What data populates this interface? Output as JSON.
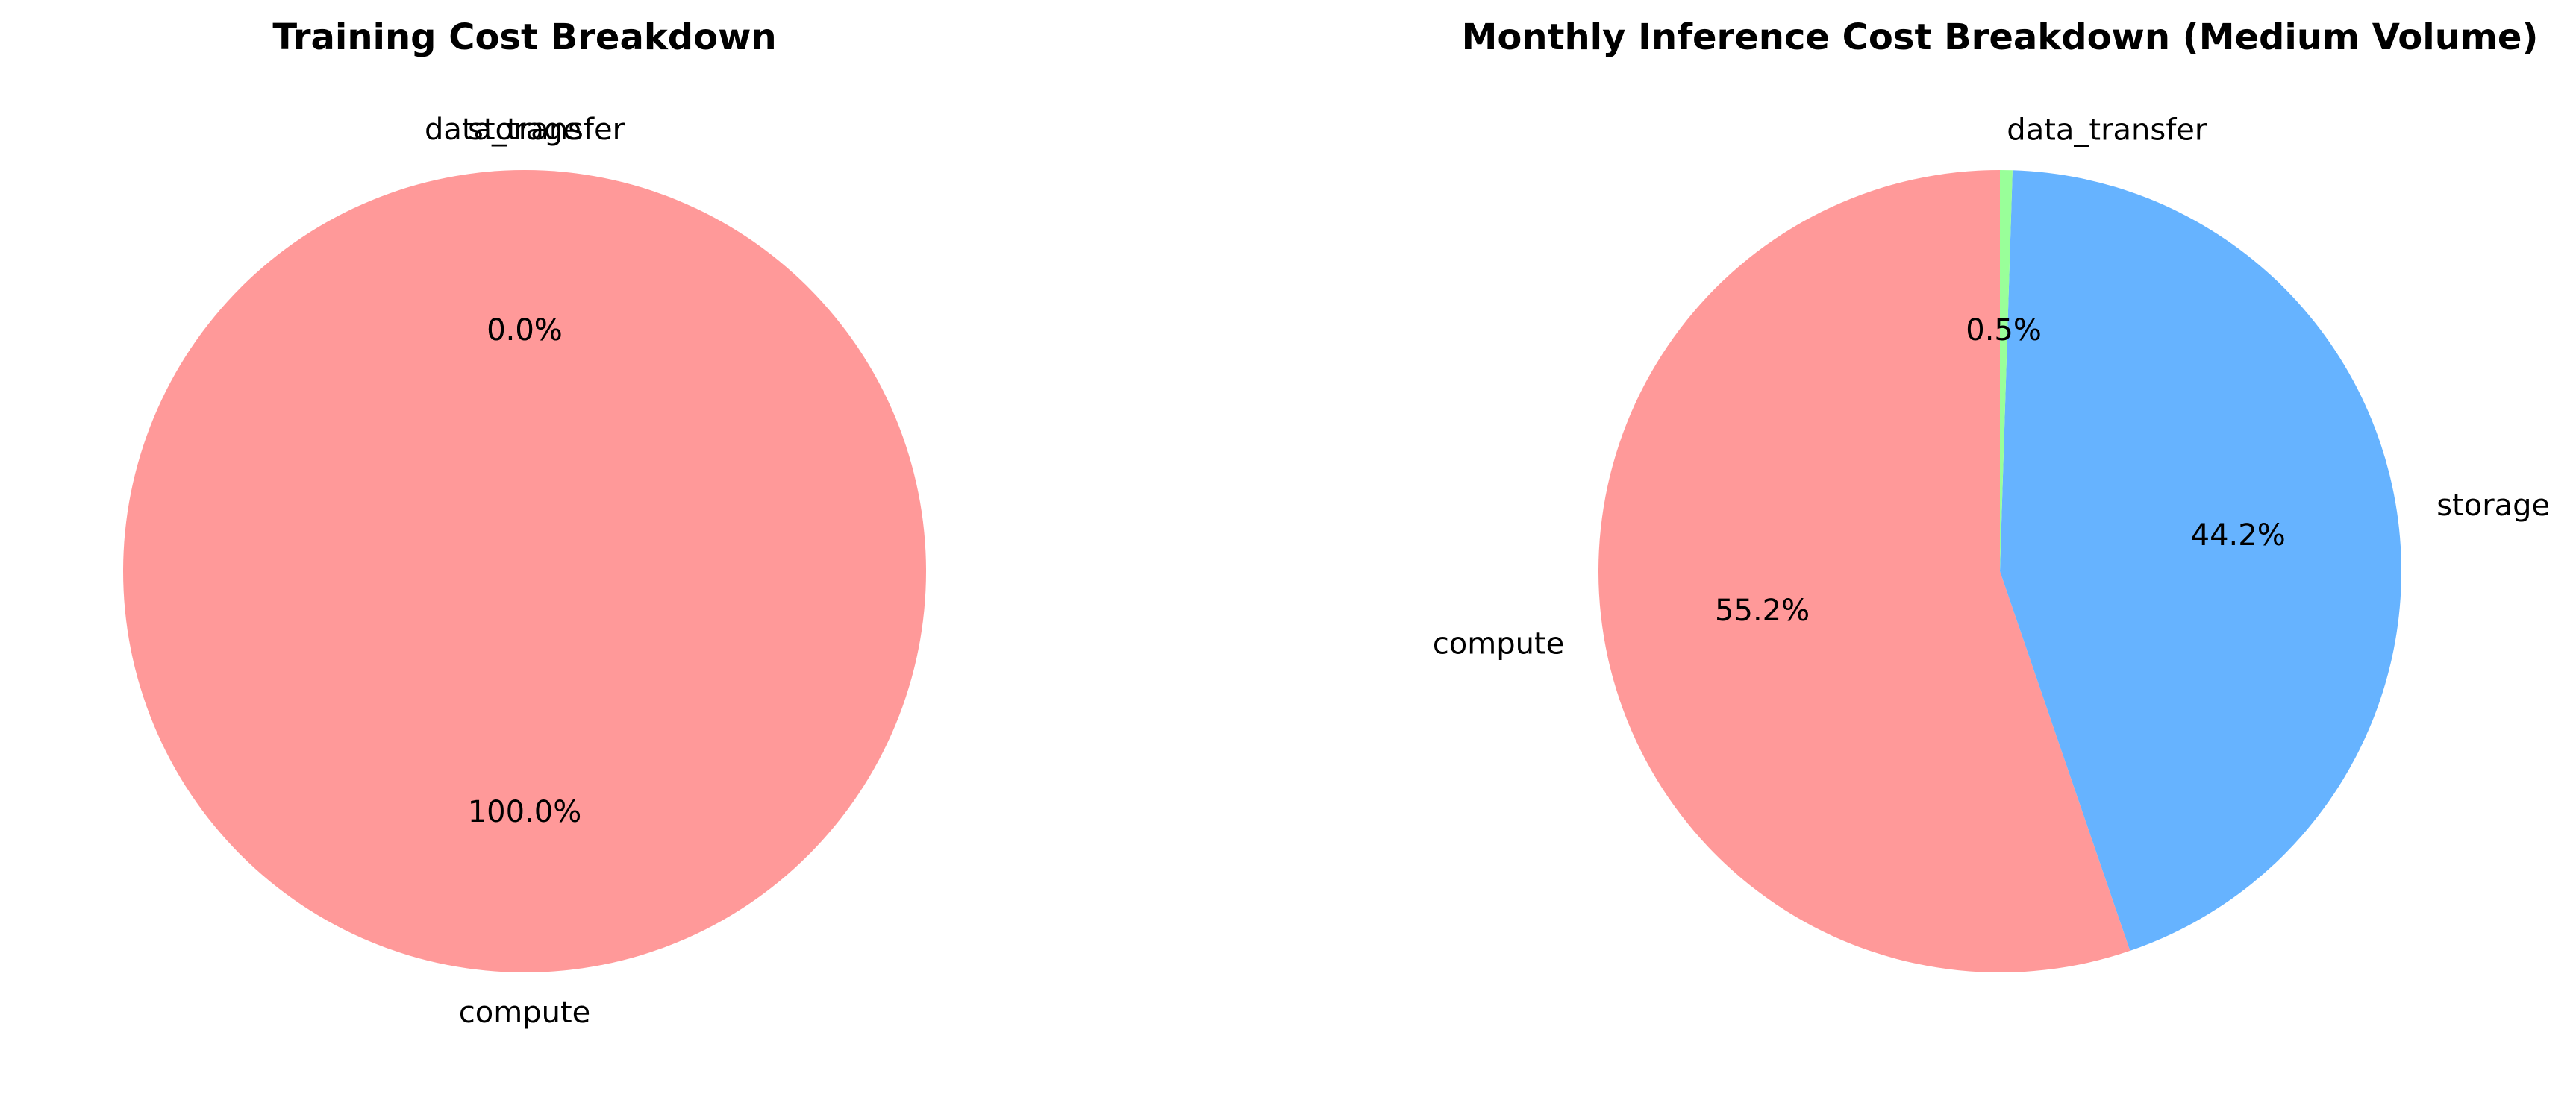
{
  "chart_data": [
    {
      "type": "pie",
      "title": "Training Cost Breakdown",
      "categories": [
        "compute",
        "storage",
        "data_transfer"
      ],
      "values": [
        100.0,
        0.0,
        0.0
      ],
      "percent_labels": [
        "100.0%",
        "0.0%",
        "0.0%"
      ],
      "colors": [
        "#ff9999",
        "#66b3ff",
        "#99ff99"
      ],
      "start_angle_deg": 90,
      "direction": "counterclockwise",
      "legend": "none"
    },
    {
      "type": "pie",
      "title": "Monthly Inference Cost Breakdown (Medium Volume)",
      "categories": [
        "compute",
        "storage",
        "data_transfer"
      ],
      "values": [
        55.2,
        44.2,
        0.5
      ],
      "percent_labels": [
        "55.2%",
        "44.2%",
        "0.5%"
      ],
      "colors": [
        "#ff9999",
        "#66b3ff",
        "#99ff99"
      ],
      "start_angle_deg": 90,
      "direction": "counterclockwise",
      "legend": "none"
    }
  ]
}
